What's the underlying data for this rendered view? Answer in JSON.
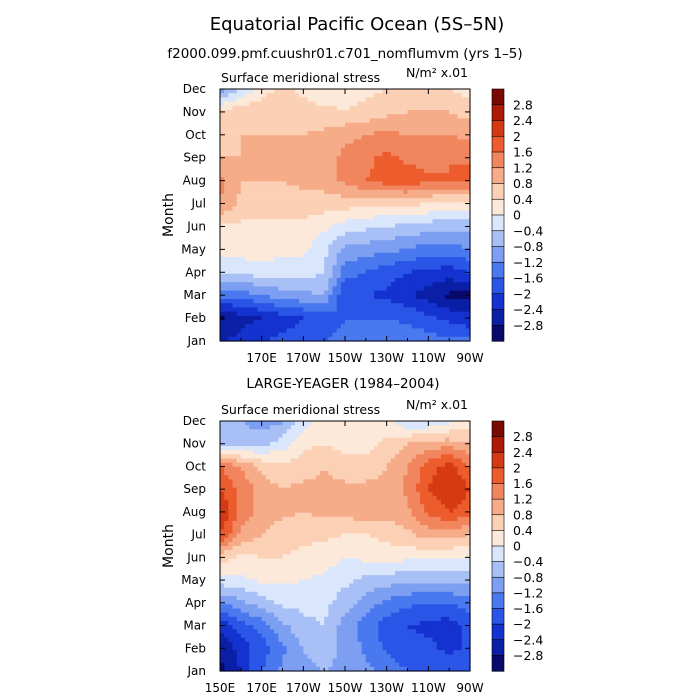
{
  "title": "Equatorial Pacific Ocean (5S–5N)",
  "subtitle": "f2000.099.pmf.cuushr01.c701_nomflumvm (yrs 1–5)",
  "colors": {
    "levels": [
      -2.8,
      -2.4,
      -2,
      -1.6,
      -1.2,
      -0.8,
      -0.4,
      0,
      0.4,
      0.8,
      1.2,
      1.6,
      2,
      2.4,
      2.8
    ],
    "palette": [
      "#08096b",
      "#0a1ea6",
      "#1432d0",
      "#2a55e6",
      "#4a78ee",
      "#7d9ff2",
      "#a9c0f6",
      "#d9e6fb",
      "#fde9d9",
      "#fbd0b4",
      "#f6ac88",
      "#f1865e",
      "#ec5c2d",
      "#d63a13",
      "#ad1a06",
      "#7a0904"
    ]
  },
  "chart_data": [
    {
      "type": "heatmap",
      "title": "",
      "left_label": "Surface meridional stress",
      "right_label": "N/m² x.01",
      "xlabel": "",
      "ylabel": "Month",
      "x_ticks": [
        "170E",
        "170W",
        "150W",
        "130W",
        "110W",
        "90W"
      ],
      "y_ticks": [
        "Jan",
        "Feb",
        "Mar",
        "Apr",
        "May",
        "Jun",
        "Jul",
        "Aug",
        "Sep",
        "Oct",
        "Nov",
        "Dec"
      ],
      "x_range": [
        "150E",
        "90W"
      ],
      "colorbar": {
        "labels": [
          "2.8",
          "2.4",
          "2",
          "1.6",
          "1.2",
          "0.8",
          "0.4",
          "0",
          "−0.4",
          "−0.8",
          "−1.2",
          "−1.6",
          "−2",
          "−2.4",
          "−2.8"
        ]
      },
      "x": [
        150,
        160,
        170,
        180,
        190,
        200,
        210,
        220,
        230,
        240,
        250,
        260,
        270
      ],
      "y": [
        "Jan",
        "Feb",
        "Mar",
        "Apr",
        "May",
        "Jun",
        "Jul",
        "Aug",
        "Sep",
        "Oct",
        "Nov",
        "Dec"
      ],
      "z": [
        [
          -2.5,
          -2.2,
          -2.0,
          -1.9,
          -1.8,
          -1.6,
          -1.5,
          -1.4,
          -1.3,
          -1.3,
          -1.4,
          -1.5,
          -1.5
        ],
        [
          -2.9,
          -2.6,
          -2.4,
          -2.2,
          -2.0,
          -1.8,
          -1.6,
          -1.6,
          -1.6,
          -1.7,
          -1.9,
          -2.1,
          -2.3
        ],
        [
          -1.5,
          -1.4,
          -1.2,
          -1.0,
          -0.9,
          -0.8,
          -2.0,
          -2.0,
          -2.1,
          -2.3,
          -2.6,
          -2.9,
          -2.9
        ],
        [
          -0.3,
          -0.3,
          -0.2,
          -0.2,
          -0.2,
          -0.4,
          -1.4,
          -1.6,
          -1.8,
          -2.0,
          -2.1,
          -2.2,
          -2.0
        ],
        [
          0.2,
          0.2,
          0.2,
          0.1,
          0.1,
          -0.3,
          -0.9,
          -1.0,
          -1.1,
          -1.2,
          -1.4,
          -1.4,
          -1.2
        ],
        [
          0.3,
          0.3,
          0.3,
          0.3,
          0.3,
          0.1,
          -0.2,
          -0.3,
          -0.4,
          -0.5,
          -0.6,
          -0.7,
          -0.6
        ],
        [
          1.2,
          0.7,
          0.6,
          0.6,
          0.6,
          0.6,
          0.6,
          0.5,
          0.5,
          0.5,
          0.4,
          0.3,
          0.3
        ],
        [
          1.3,
          0.8,
          0.8,
          0.8,
          0.9,
          1.0,
          1.3,
          1.6,
          1.8,
          1.9,
          1.7,
          1.6,
          1.8
        ],
        [
          0.8,
          0.8,
          0.8,
          0.8,
          0.9,
          1.0,
          1.3,
          1.5,
          1.7,
          1.5,
          1.4,
          1.6,
          1.5
        ],
        [
          0.7,
          0.8,
          0.8,
          0.8,
          0.8,
          0.9,
          1.1,
          1.2,
          1.3,
          1.2,
          1.2,
          1.2,
          1.1
        ],
        [
          0.4,
          0.7,
          0.7,
          0.7,
          0.6,
          0.5,
          0.4,
          0.5,
          0.7,
          0.8,
          0.8,
          0.8,
          0.6
        ],
        [
          -1.0,
          -0.4,
          0.2,
          0.5,
          0.3,
          0.1,
          0.3,
          0.3,
          0.4,
          0.6,
          0.5,
          0.4,
          0.2
        ]
      ]
    },
    {
      "type": "heatmap",
      "title": "LARGE-YEAGER (1984–2004)",
      "left_label": "Surface meridional stress",
      "right_label": "N/m² x.01",
      "xlabel": "",
      "ylabel": "Month",
      "x_ticks": [
        "150E",
        "170E",
        "170W",
        "150W",
        "130W",
        "110W",
        "90W"
      ],
      "y_ticks": [
        "Jan",
        "Feb",
        "Mar",
        "Apr",
        "May",
        "Jun",
        "Jul",
        "Aug",
        "Sep",
        "Oct",
        "Nov",
        "Dec"
      ],
      "x_range": [
        "150E",
        "90W"
      ],
      "colorbar": {
        "labels": [
          "2.8",
          "2.4",
          "2",
          "1.6",
          "1.2",
          "0.8",
          "0.4",
          "0",
          "−0.4",
          "−0.8",
          "−1.2",
          "−1.6",
          "−2",
          "−2.4",
          "−2.8"
        ]
      },
      "x": [
        150,
        160,
        170,
        180,
        190,
        200,
        210,
        220,
        230,
        240,
        250,
        260,
        270
      ],
      "y": [
        "Jan",
        "Feb",
        "Mar",
        "Apr",
        "May",
        "Jun",
        "Jul",
        "Aug",
        "Sep",
        "Oct",
        "Nov",
        "Dec"
      ],
      "z": [
        [
          -2.9,
          -2.4,
          -1.6,
          -1.1,
          -0.9,
          -0.8,
          -0.9,
          -1.1,
          -1.3,
          -1.6,
          -1.8,
          -1.8,
          -1.6
        ],
        [
          -2.8,
          -2.2,
          -1.8,
          -1.3,
          -0.8,
          -0.6,
          -0.9,
          -1.3,
          -1.7,
          -1.9,
          -1.9,
          -2.1,
          -1.9
        ],
        [
          -2.3,
          -1.8,
          -1.4,
          -0.9,
          -0.5,
          -0.4,
          -1.0,
          -1.4,
          -1.8,
          -2.0,
          -2.1,
          -2.2,
          -1.9
        ],
        [
          -1.2,
          -0.9,
          -0.6,
          -0.3,
          -0.3,
          -0.3,
          -0.6,
          -1.0,
          -1.3,
          -1.5,
          -1.6,
          -1.6,
          -1.4
        ],
        [
          -0.2,
          -0.1,
          0.1,
          0.1,
          0.0,
          -0.1,
          -0.3,
          -0.5,
          -0.6,
          -0.7,
          -0.7,
          -0.7,
          -0.6
        ],
        [
          0.6,
          0.3,
          0.4,
          0.4,
          0.3,
          0.2,
          0.0,
          0.1,
          0.2,
          0.1,
          0.1,
          0.0,
          0.0
        ],
        [
          2.0,
          1.1,
          0.8,
          0.6,
          0.5,
          0.5,
          0.4,
          0.4,
          0.5,
          0.7,
          1.0,
          1.0,
          0.8
        ],
        [
          2.4,
          1.5,
          1.0,
          0.9,
          0.8,
          0.9,
          0.9,
          1.1,
          1.0,
          1.1,
          1.7,
          2.0,
          1.8
        ],
        [
          2.0,
          1.5,
          1.0,
          0.8,
          0.9,
          0.9,
          0.9,
          0.9,
          0.9,
          1.3,
          2.0,
          2.4,
          2.0
        ],
        [
          1.6,
          1.2,
          0.7,
          0.5,
          0.6,
          0.8,
          0.6,
          0.6,
          0.8,
          1.2,
          1.8,
          2.2,
          1.6
        ],
        [
          -0.5,
          -0.6,
          -0.5,
          -0.2,
          0.3,
          0.4,
          0.2,
          0.2,
          0.5,
          0.8,
          1.0,
          1.0,
          0.8
        ],
        [
          -0.6,
          -0.8,
          -1.0,
          -0.9,
          -0.2,
          0.2,
          0.4,
          0.4,
          0.1,
          -0.4,
          -0.4,
          -0.1,
          0.1
        ]
      ]
    }
  ]
}
